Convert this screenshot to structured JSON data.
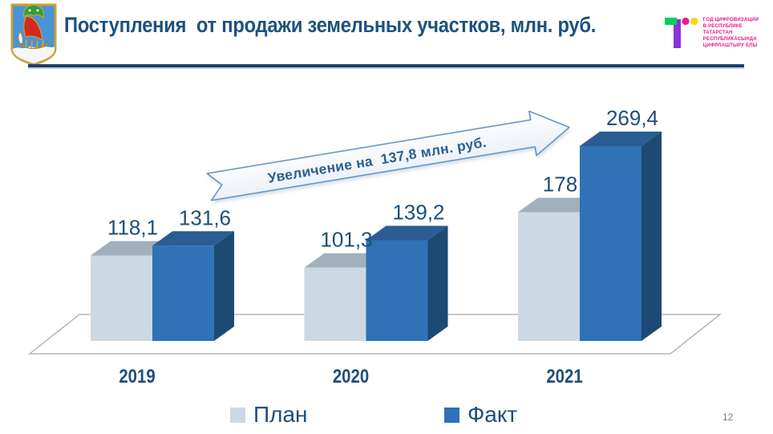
{
  "header": {
    "title": "Поступления  от продажи земельных участков, млн. руб."
  },
  "logo_right": {
    "lines": [
      "ГОД ЦИФРОВИЗАЦИИ",
      "В РЕСПУБЛИКЕ",
      "ТАТАРСТАН",
      "РЕСПУБЛИКАСЫНДА",
      "ЦИФРЛАШТЫРУ ЕЛЫ"
    ],
    "mark_colors": {
      "green": "#00d355",
      "purple": "#8a33d7",
      "pink": "#ed1e8c",
      "yellow": "#ffd500"
    },
    "text_color": "#e61687"
  },
  "chart_data": {
    "type": "bar",
    "variant": "3d-column",
    "title": "Поступления от продажи земельных участков, млн. руб.",
    "categories": [
      "2019",
      "2020",
      "2021"
    ],
    "series": [
      {
        "name": "План",
        "values": [
          118.1,
          101.3,
          178
        ],
        "labels": [
          "118,1",
          "101,3",
          "178"
        ],
        "colors": {
          "front": "#ccd9e2",
          "top": "#a1b0bc",
          "side": "#b3c2cd"
        }
      },
      {
        "name": "Факт",
        "values": [
          131.6,
          139.2,
          269.4
        ],
        "labels": [
          "131,6",
          "139,2",
          "269,4"
        ],
        "colors": {
          "front": "#2f72b6",
          "top": "#2a5d93",
          "side": "#1d4a73"
        }
      }
    ],
    "annotation": "Увеличение на  137,8 млн. руб.",
    "value_label_color": "#1f4e79",
    "category_label_color": "#1f4e79",
    "ylim": [
      0,
      280
    ],
    "grid": false,
    "legend_position": "bottom"
  },
  "footer": {
    "page_number": "12"
  }
}
